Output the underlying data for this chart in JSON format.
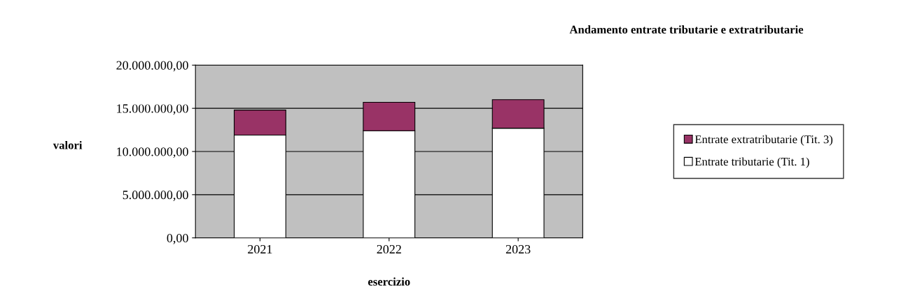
{
  "chart_data": {
    "type": "bar",
    "title": "Andamento entrate tributarie e extratributarie",
    "xlabel": "esercizio",
    "ylabel": "valori",
    "categories": [
      "2021",
      "2022",
      "2023"
    ],
    "stacked": true,
    "series": [
      {
        "name": "Entrate tributarie (Tit. 1)",
        "color": "#ffffff",
        "values": [
          11900000,
          12400000,
          12700000
        ]
      },
      {
        "name": "Entrate extratributarie (Tit. 3)",
        "color": "#993366",
        "values": [
          2900000,
          3300000,
          3300000
        ]
      }
    ],
    "ylim": [
      0,
      20000000
    ],
    "yticks": [
      {
        "value": 0,
        "label": "0,00"
      },
      {
        "value": 5000000,
        "label": "5.000.000,00"
      },
      {
        "value": 10000000,
        "label": "10.000.000,00"
      },
      {
        "value": 15000000,
        "label": "15.000.000,00"
      },
      {
        "value": 20000000,
        "label": "20.000.000,00"
      }
    ],
    "grid": "y",
    "legend": "right"
  }
}
